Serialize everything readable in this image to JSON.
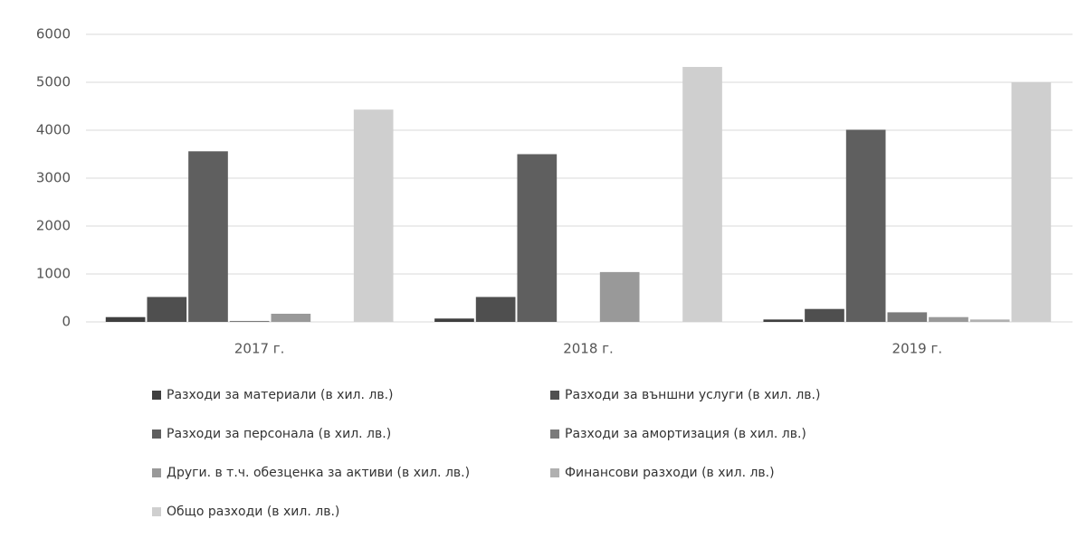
{
  "chart_data": {
    "type": "bar",
    "categories": [
      "2017 г.",
      "2018 г.",
      "2019 г."
    ],
    "series": [
      {
        "name": "Разходи за материали (в хил. лв.)",
        "color": "#3f3f3f",
        "values": [
          100,
          70,
          50
        ]
      },
      {
        "name": "Разходи за външни услуги (в хил. лв.)",
        "color": "#4f4f4f",
        "values": [
          520,
          520,
          270
        ]
      },
      {
        "name": "Разходи за персонала (в хил. лв.)",
        "color": "#5f5f5f",
        "values": [
          3560,
          3500,
          4010
        ]
      },
      {
        "name": "Разходи за амортизация (в хил. лв.)",
        "color": "#7a7a7a",
        "values": [
          20,
          0,
          200
        ]
      },
      {
        "name": "Други. в т.ч. обезценка за активи (в хил. лв.)",
        "color": "#999999",
        "values": [
          170,
          1040,
          100
        ]
      },
      {
        "name": "Финансови разходи (в хил. лв.)",
        "color": "#b0b0b0",
        "values": [
          0,
          0,
          50
        ]
      },
      {
        "name": "Общо разходи (в хил. лв.)",
        "color": "#cfcfcf",
        "values": [
          4430,
          5320,
          5000
        ]
      }
    ],
    "ylim": [
      0,
      6000
    ],
    "yticks": [
      0,
      1000,
      2000,
      3000,
      4000,
      5000,
      6000
    ],
    "grid": true
  }
}
